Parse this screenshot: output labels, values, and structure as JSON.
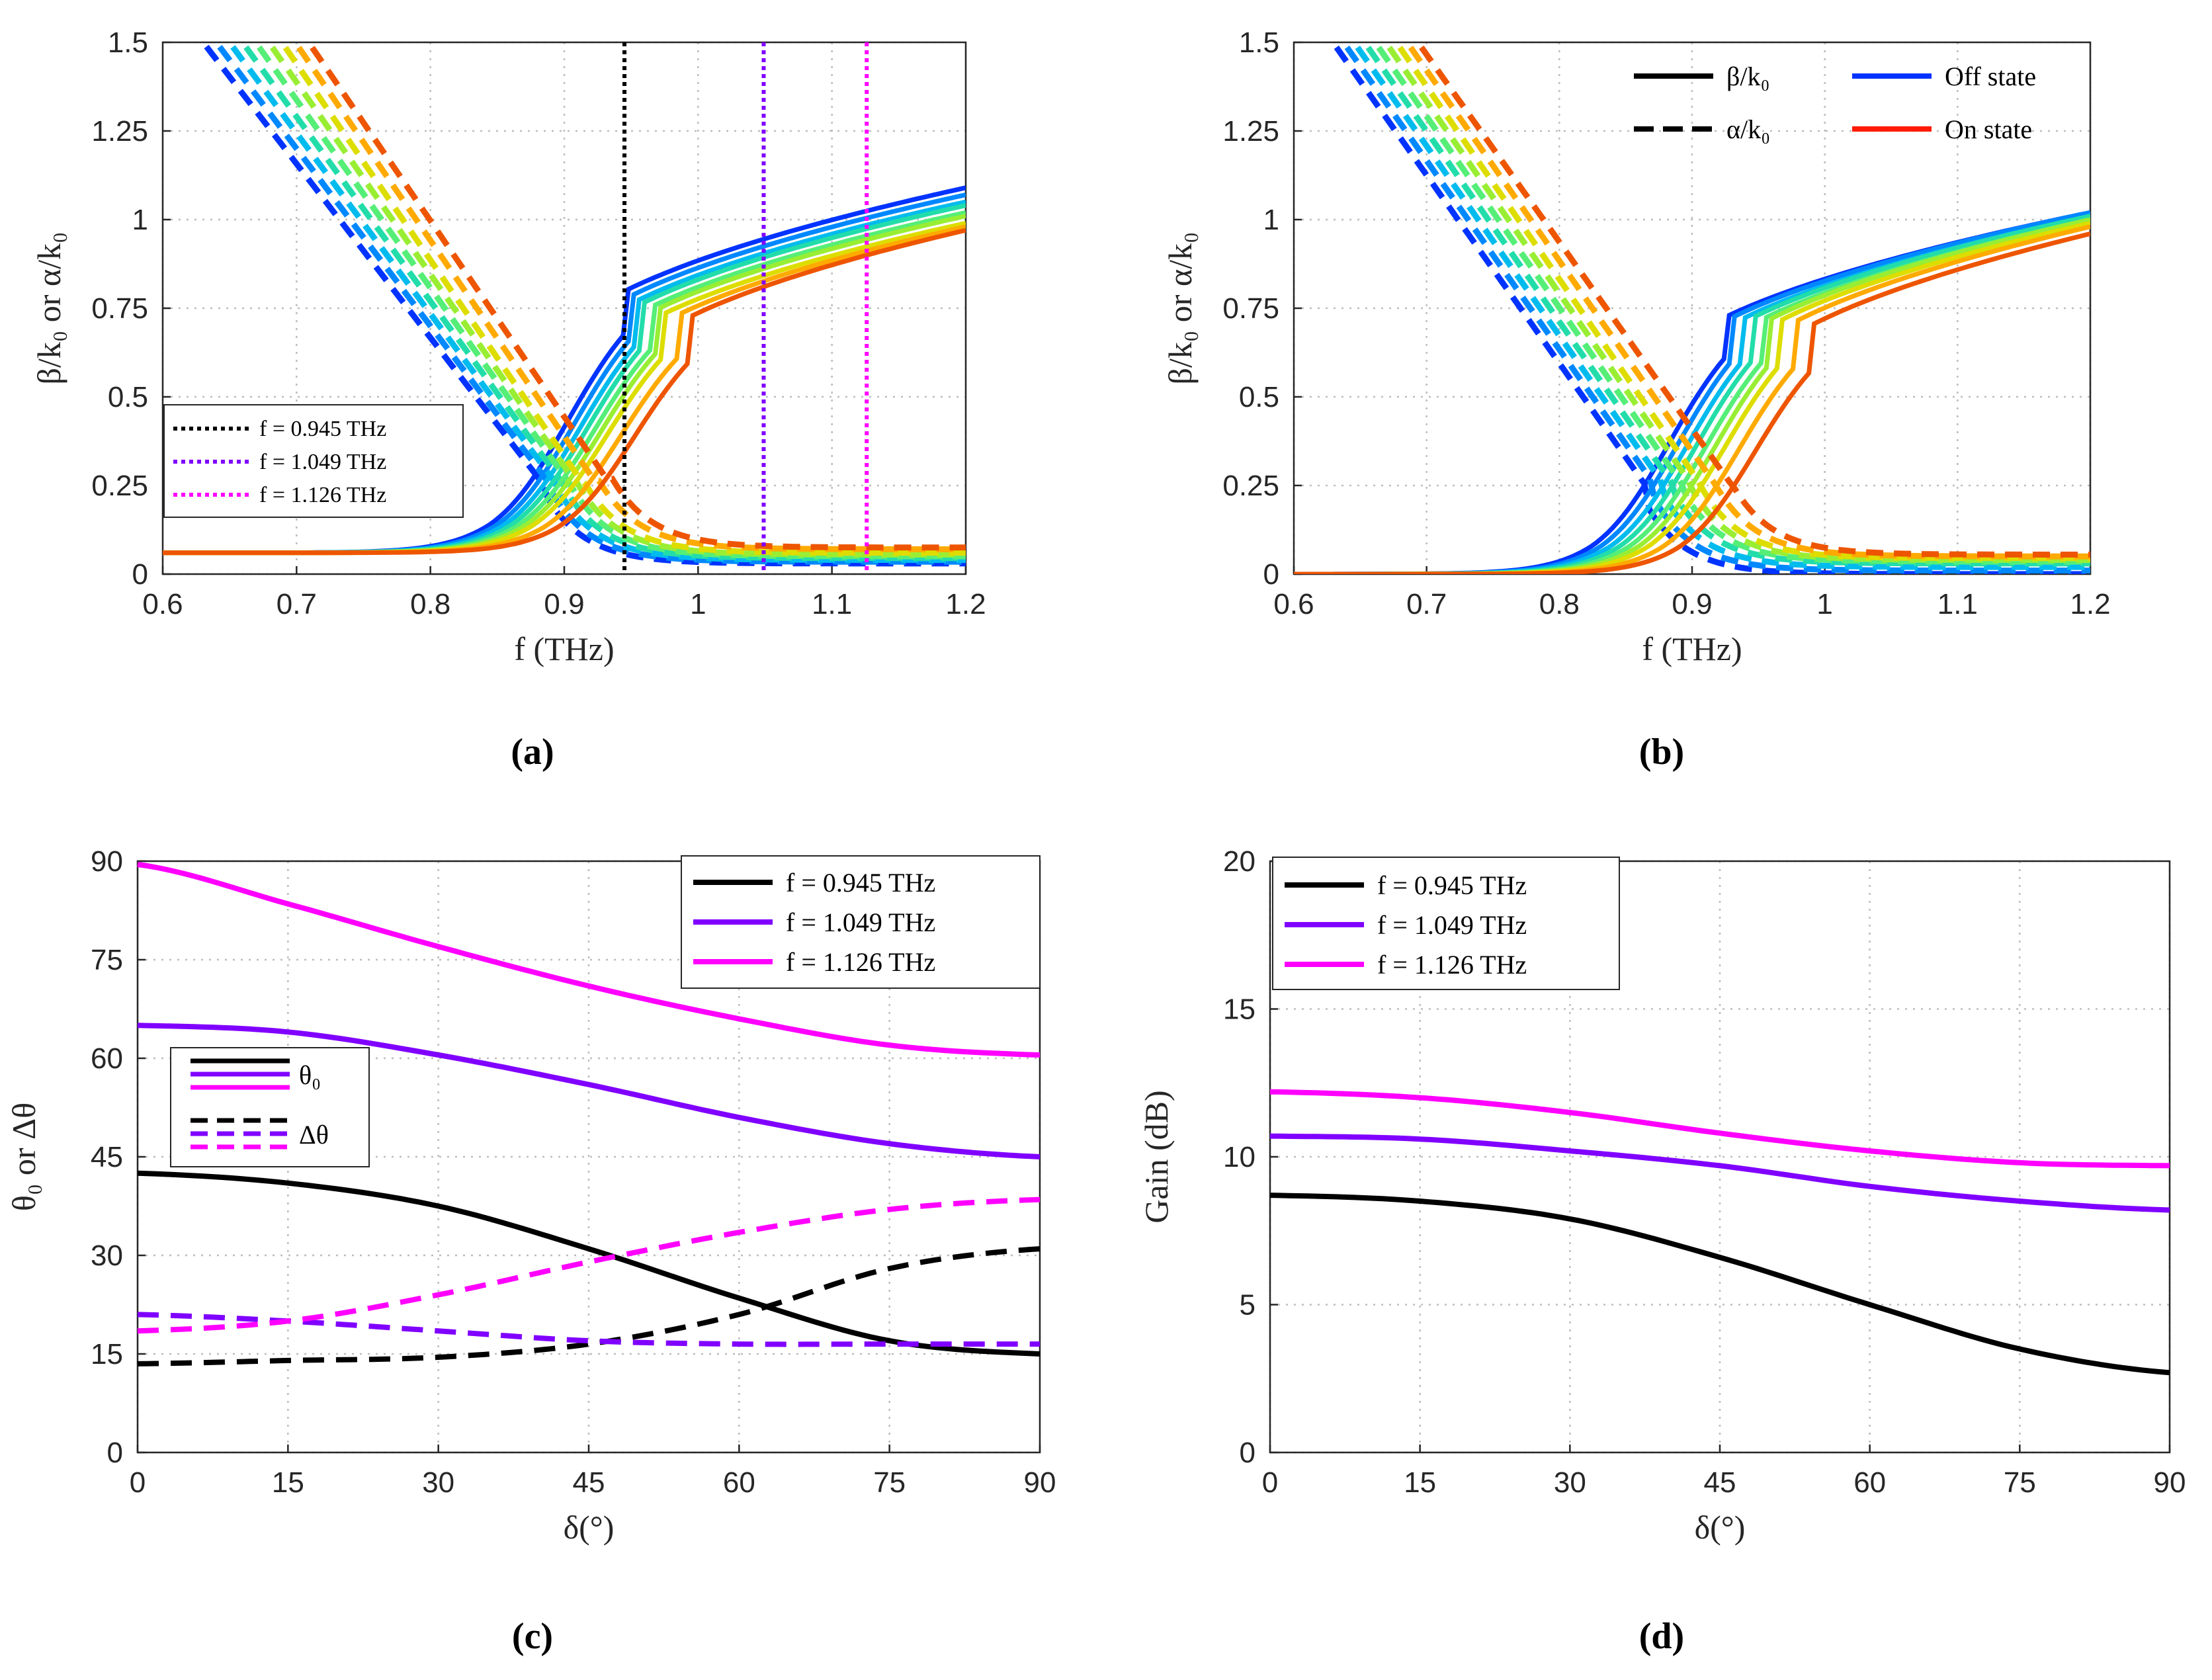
{
  "chart_data": [
    {
      "id": "a",
      "panel_label": "(a)",
      "type": "line",
      "xlabel": "f (THz)",
      "ylabel": "β/k₀ or α/k₀",
      "xlim": [
        0.6,
        1.2
      ],
      "ylim": [
        0,
        1.5
      ],
      "xticks": [
        0.6,
        0.7,
        0.8,
        0.9,
        1,
        1.1,
        1.2
      ],
      "yticks": [
        0,
        0.25,
        0.5,
        0.75,
        1,
        1.25,
        1.5
      ],
      "xtick_labels": [
        "0.6",
        "0.7",
        "0.8",
        "0.9",
        "1",
        "1.1",
        "1.2"
      ],
      "ytick_labels": [
        "0",
        "0.25",
        "0.5",
        "0.75",
        "1",
        "1.25",
        "1.5"
      ],
      "grid": true,
      "legend_position": "bottom-left",
      "curve_family": {
        "count": 9,
        "colors": [
          "#0033ff",
          "#0088ff",
          "#00bbee",
          "#22ddaa",
          "#55ee77",
          "#99ee33",
          "#dddd00",
          "#ffaa00",
          "#ee5500"
        ],
        "beta_f50": [
          0.895,
          0.9,
          0.905,
          0.91,
          0.915,
          0.92,
          0.925,
          0.935,
          0.945
        ],
        "beta_high_end": [
          1.09,
          1.07,
          1.05,
          1.04,
          1.02,
          1.01,
          0.99,
          0.98,
          0.97
        ],
        "beta_low_value": 0.06,
        "alpha_shift": [
          0.0,
          0.01,
          0.02,
          0.03,
          0.04,
          0.05,
          0.06,
          0.07,
          0.08
        ],
        "alpha_tail": [
          0.03,
          0.035,
          0.04,
          0.045,
          0.05,
          0.055,
          0.06,
          0.07,
          0.075
        ]
      },
      "vlines": [
        {
          "x": 0.945,
          "color": "#000000",
          "label": "f = 0.945 THz"
        },
        {
          "x": 1.049,
          "color": "#8000ff",
          "label": "f = 1.049 THz"
        },
        {
          "x": 1.126,
          "color": "#ff00ff",
          "label": "f = 1.126 THz"
        }
      ]
    },
    {
      "id": "b",
      "panel_label": "(b)",
      "type": "line",
      "xlabel": "f (THz)",
      "ylabel": "β/k₀ or α/k₀",
      "xlim": [
        0.6,
        1.2
      ],
      "ylim": [
        0,
        1.5
      ],
      "xticks": [
        0.6,
        0.7,
        0.8,
        0.9,
        1,
        1.1,
        1.2
      ],
      "yticks": [
        0,
        0.25,
        0.5,
        0.75,
        1,
        1.25,
        1.5
      ],
      "xtick_labels": [
        "0.6",
        "0.7",
        "0.8",
        "0.9",
        "1",
        "1.1",
        "1.2"
      ],
      "ytick_labels": [
        "0",
        "0.25",
        "0.5",
        "0.75",
        "1",
        "1.25",
        "1.5"
      ],
      "grid": true,
      "legend_position": "top-right",
      "curve_family": {
        "count": 9,
        "colors": [
          "#0033ff",
          "#0088ff",
          "#00bbee",
          "#22ddaa",
          "#55ee77",
          "#99ee33",
          "#dddd00",
          "#ffaa00",
          "#ee5500"
        ],
        "beta_f50": [
          0.875,
          0.882,
          0.889,
          0.896,
          0.903,
          0.91,
          0.917,
          0.928,
          0.94
        ],
        "beta_high_end": [
          1.02,
          1.02,
          1.01,
          1.01,
          1.0,
          1.0,
          0.99,
          0.98,
          0.96
        ],
        "beta_low_value": 0.0,
        "alpha_shift": [
          0.0,
          0.008,
          0.016,
          0.024,
          0.032,
          0.04,
          0.048,
          0.056,
          0.064
        ],
        "alpha_tail": [
          0.0,
          0.01,
          0.02,
          0.03,
          0.035,
          0.04,
          0.045,
          0.05,
          0.055
        ]
      },
      "legend": [
        {
          "label": "β/k₀",
          "style": "solid",
          "color": "#000000"
        },
        {
          "label": "α/k₀",
          "style": "dashed",
          "color": "#000000"
        },
        {
          "label": "Off state",
          "style": "solid",
          "color": "#0033ff"
        },
        {
          "label": "On state",
          "style": "solid",
          "color": "#ff1a00"
        }
      ]
    },
    {
      "id": "c",
      "panel_label": "(c)",
      "type": "line",
      "xlabel": "δ(°)",
      "ylabel": "θ₀ or Δθ",
      "xlim": [
        0,
        90
      ],
      "ylim": [
        0,
        90
      ],
      "xticks": [
        0,
        15,
        30,
        45,
        60,
        75,
        90
      ],
      "yticks": [
        0,
        15,
        30,
        45,
        60,
        75,
        90
      ],
      "xtick_labels": [
        "0",
        "15",
        "30",
        "45",
        "60",
        "75",
        "90"
      ],
      "ytick_labels": [
        "0",
        "15",
        "30",
        "45",
        "60",
        "75",
        "90"
      ],
      "grid": true,
      "x": [
        0,
        15,
        30,
        45,
        60,
        75,
        90
      ],
      "series": [
        {
          "name": "f = 0.945 THz",
          "kind": "θ₀",
          "style": "solid",
          "color": "#000000",
          "values": [
            42.5,
            41,
            37.5,
            31,
            23.5,
            17,
            15
          ]
        },
        {
          "name": "f = 1.049 THz",
          "kind": "θ₀",
          "style": "solid",
          "color": "#8000ff",
          "values": [
            65,
            64,
            60.5,
            56,
            51,
            47,
            45
          ]
        },
        {
          "name": "f = 1.126 THz",
          "kind": "θ₀",
          "style": "solid",
          "color": "#ff00ff",
          "values": [
            89.5,
            83.5,
            77,
            71,
            66,
            62,
            60.5
          ]
        },
        {
          "name": "f = 0.945 THz",
          "kind": "Δθ",
          "style": "dashed",
          "color": "#000000",
          "values": [
            13.5,
            14,
            14.5,
            16.5,
            21,
            28,
            31
          ]
        },
        {
          "name": "f = 1.049 THz",
          "kind": "Δθ",
          "style": "dashed",
          "color": "#8000ff",
          "values": [
            21,
            20,
            18.5,
            17,
            16.5,
            16.5,
            16.5
          ]
        },
        {
          "name": "f = 1.126 THz",
          "kind": "Δθ",
          "style": "dashed",
          "color": "#ff00ff",
          "values": [
            18.5,
            20,
            24,
            29,
            33.5,
            37,
            38.5
          ]
        }
      ],
      "legend": {
        "freq_entries": [
          "f = 0.945 THz",
          "f = 1.049 THz",
          "f = 1.126 THz"
        ],
        "kind_entries": [
          "θ₀",
          "Δθ"
        ],
        "position": "top-right"
      }
    },
    {
      "id": "d",
      "panel_label": "(d)",
      "type": "line",
      "xlabel": "δ(°)",
      "ylabel": "Gain (dB)",
      "xlim": [
        0,
        90
      ],
      "ylim": [
        0,
        20
      ],
      "xticks": [
        0,
        15,
        30,
        45,
        60,
        75,
        90
      ],
      "yticks": [
        0,
        5,
        10,
        15,
        20
      ],
      "xtick_labels": [
        "0",
        "15",
        "30",
        "45",
        "60",
        "75",
        "90"
      ],
      "ytick_labels": [
        "0",
        "5",
        "10",
        "15",
        "20"
      ],
      "grid": true,
      "x": [
        0,
        15,
        30,
        45,
        60,
        75,
        90
      ],
      "series": [
        {
          "name": "f = 0.945 THz",
          "color": "#000000",
          "values": [
            8.7,
            8.5,
            7.9,
            6.6,
            5.0,
            3.5,
            2.7
          ]
        },
        {
          "name": "f = 1.049 THz",
          "color": "#8000ff",
          "values": [
            10.7,
            10.6,
            10.2,
            9.7,
            9.0,
            8.5,
            8.2
          ]
        },
        {
          "name": "f = 1.126 THz",
          "color": "#ff00ff",
          "values": [
            12.2,
            12.0,
            11.5,
            10.8,
            10.2,
            9.8,
            9.7
          ]
        }
      ],
      "legend": {
        "position": "top-left"
      }
    }
  ]
}
